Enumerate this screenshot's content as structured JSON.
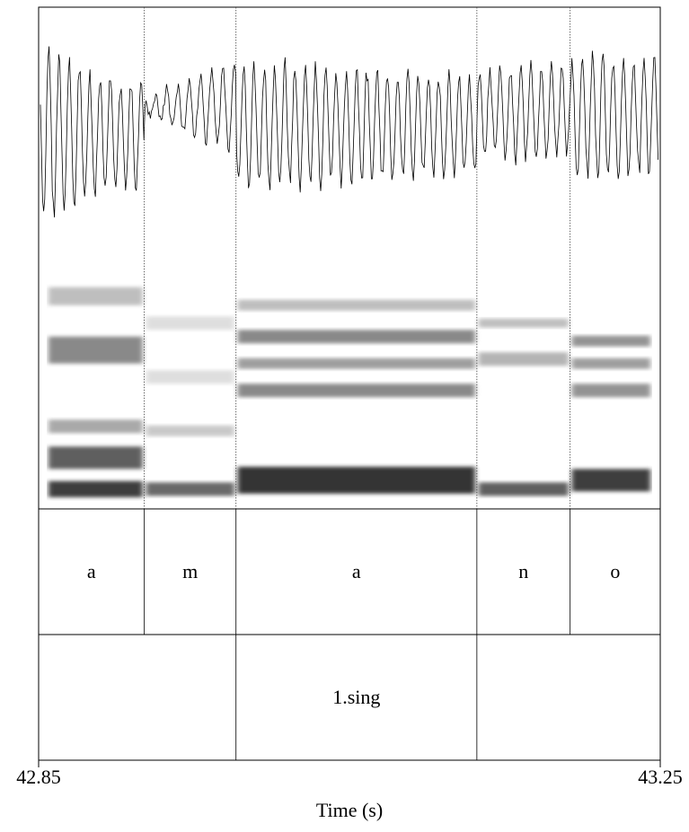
{
  "chart_data": {
    "type": "textgrid",
    "xlabel": "Time (s)",
    "xlim": [
      42.85,
      43.25
    ],
    "xticks": [
      42.85,
      43.25
    ],
    "tiers": [
      {
        "boundaries": [
          42.918,
          42.977,
          43.132,
          43.192
        ],
        "labels": [
          "a",
          "m",
          "a",
          "n",
          "o"
        ]
      },
      {
        "boundaries": [
          42.977,
          43.132
        ],
        "labels": [
          null,
          "1.sing",
          null
        ]
      }
    ]
  }
}
